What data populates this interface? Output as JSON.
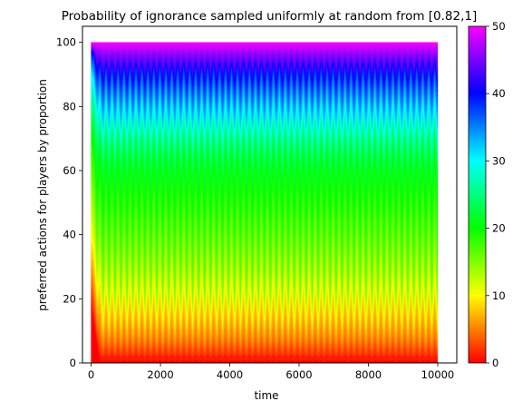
{
  "chart_data": {
    "type": "area",
    "title": "Probability of ignorance sampled uniformly at random from [0.82,1]",
    "xlabel": "time",
    "ylabel": "preferred actions for players by proportion",
    "xlim": [
      -250,
      10550
    ],
    "ylim": [
      0,
      105
    ],
    "x_ticks": [
      0,
      2000,
      4000,
      6000,
      8000,
      10000
    ],
    "y_ticks": [
      0,
      20,
      40,
      60,
      80,
      100
    ],
    "x_tick_labels": [
      "0",
      "2000",
      "4000",
      "6000",
      "8000",
      "10000"
    ],
    "y_tick_labels": [
      "0",
      "20",
      "40",
      "60",
      "80",
      "100"
    ],
    "time_range": [
      0,
      10000
    ],
    "oscillation_cycles": 58,
    "initial_bands": [
      {
        "action": 0,
        "upper": 17
      },
      {
        "action": 10,
        "upper": 40
      },
      {
        "action": 20,
        "upper": 70
      },
      {
        "action": 30,
        "upper": 90
      },
      {
        "action": 40,
        "upper": 97
      },
      {
        "action": 50,
        "upper": 100
      }
    ],
    "band_ranges": {
      "red_ceiling": [
        5,
        10
      ],
      "orange_yellow_ceiling": [
        20,
        45
      ],
      "green_ceiling": [
        58,
        72
      ],
      "blue_ceiling": [
        84,
        93
      ],
      "magenta_top": 100
    },
    "colorbar": {
      "colormap": "gist_rainbow",
      "min": 0,
      "max": 50,
      "ticks": [
        0,
        10,
        20,
        30,
        40,
        50
      ],
      "tick_labels": [
        "0",
        "10",
        "20",
        "30",
        "40",
        "50"
      ],
      "colors": [
        "#ff0029",
        "#ff5c00",
        "#ffb800",
        "#f0ff00",
        "#7cff00",
        "#00ff10",
        "#00ff7a",
        "#00ffe0",
        "#00b4ff",
        "#0040ff",
        "#2800ff",
        "#a000ff",
        "#ff00e0"
      ]
    },
    "grid": false,
    "legend": "none"
  }
}
